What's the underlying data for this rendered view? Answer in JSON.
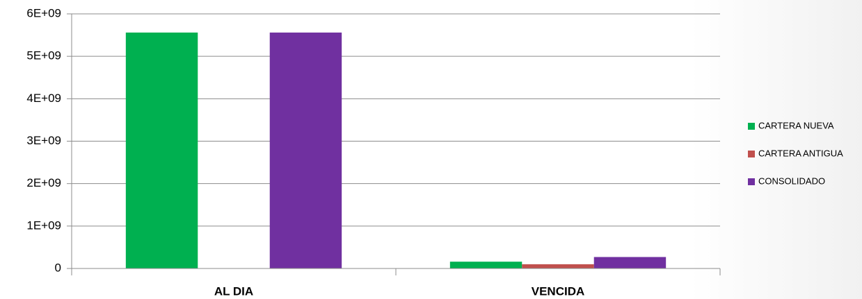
{
  "chart_data": {
    "type": "bar",
    "categories": [
      "AL DIA",
      "VENCIDA"
    ],
    "series": [
      {
        "name": "CARTERA NUEVA",
        "color": "#00b050",
        "values": [
          5560000000,
          160000000
        ]
      },
      {
        "name": "CARTERA ANTIGUA",
        "color": "#c0504d",
        "values": [
          0,
          100000000
        ]
      },
      {
        "name": "CONSOLIDADO",
        "color": "#7030a0",
        "values": [
          5560000000,
          270000000
        ]
      }
    ],
    "ylim": [
      0,
      6000000000
    ],
    "yticks": [
      0,
      {
        "value": 1000000000,
        "label": "1E+09"
      },
      {
        "value": 2000000000,
        "label": "2E+09"
      },
      {
        "value": 3000000000,
        "label": "3E+09"
      },
      {
        "value": 4000000000,
        "label": "4E+09"
      },
      {
        "value": 5000000000,
        "label": "5E+09"
      },
      {
        "value": 6000000000,
        "label": "6E+09"
      }
    ],
    "grid": true,
    "legend": "right"
  }
}
